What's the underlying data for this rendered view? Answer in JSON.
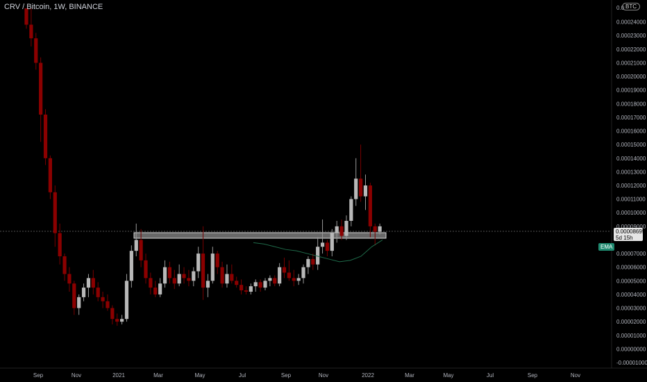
{
  "title": "CRV / Bitcoin, 1W, BINANCE",
  "currency_badge": "BTC",
  "price_label": "0.00008695",
  "countdown_label": "5d 15h",
  "ema_label": "EMA",
  "top_tick_partial": "0.0",
  "colors": {
    "background": "#000000",
    "up_candle": "#b8b8b8",
    "down_candle": "#8b0000",
    "ema": "#1f6b4a",
    "zone_fill": "#bdbdbd",
    "crosshair": "#555555"
  },
  "chart_data": {
    "type": "candlestick",
    "title": "CRV / Bitcoin, 1W, BINANCE",
    "y_ticks": [
      "0.00024000",
      "0.00023000",
      "0.00022000",
      "0.00021000",
      "0.00020000",
      "0.00019000",
      "0.00018000",
      "0.00017000",
      "0.00016000",
      "0.00015000",
      "0.00014000",
      "0.00013000",
      "0.00012000",
      "0.00011000",
      "0.00010000",
      "0.00009000",
      "0.00007000",
      "0.00006000",
      "0.00005000",
      "0.00004000",
      "0.00003000",
      "0.00002000",
      "0.00001000",
      "0.00000000",
      "-0.00001000"
    ],
    "x_ticks": [
      "Sep",
      "Nov",
      "2021",
      "Mar",
      "May",
      "Jul",
      "Sep",
      "Nov",
      "2022",
      "Mar",
      "May",
      "Jul",
      "Sep",
      "Nov"
    ],
    "ylim": [
      -1e-05,
      0.00025
    ],
    "resistance_zone": [
      8.75e-05,
      9.15e-05
    ],
    "candles": [
      [
        0.00025,
        0.00025,
        0.000235,
        0.000238
      ],
      [
        0.000238,
        0.00025,
        0.000222,
        0.000228
      ],
      [
        0.000228,
        0.000232,
        0.000205,
        0.00021
      ],
      [
        0.00021,
        0.000214,
        0.000152,
        0.000172
      ],
      [
        0.000172,
        0.000176,
        0.000135,
        0.00014
      ],
      [
        0.00014,
        0.000142,
        0.00011,
        0.000115
      ],
      [
        0.000115,
        0.00012,
        7.5e-05,
        8.5e-05
      ],
      [
        8.5e-05,
        9.2e-05,
        6.2e-05,
        6.8e-05
      ],
      [
        6.8e-05,
        7e-05,
        5e-05,
        5.5e-05
      ],
      [
        5.5e-05,
        6e-05,
        4.2e-05,
        4.8e-05
      ],
      [
        4.8e-05,
        5e-05,
        2.5e-05,
        3e-05
      ],
      [
        3e-05,
        4e-05,
        2.5e-05,
        3.8e-05
      ],
      [
        3.8e-05,
        4.8e-05,
        3.5e-05,
        4.5e-05
      ],
      [
        4.5e-05,
        5.5e-05,
        3.8e-05,
        5.2e-05
      ],
      [
        5.2e-05,
        5.8e-05,
        4e-05,
        4.5e-05
      ],
      [
        4.5e-05,
        4.9e-05,
        3.5e-05,
        3.8e-05
      ],
      [
        3.8e-05,
        4.2e-05,
        3e-05,
        3.5e-05
      ],
      [
        3.5e-05,
        4e-05,
        2.8e-05,
        3e-05
      ],
      [
        3e-05,
        3.2e-05,
        1.8e-05,
        2.2e-05
      ],
      [
        2.2e-05,
        2.6e-05,
        1.7e-05,
        2e-05
      ],
      [
        2e-05,
        2.5e-05,
        1.8e-05,
        2.2e-05
      ],
      [
        2.2e-05,
        5.5e-05,
        2e-05,
        5e-05
      ],
      [
        5e-05,
        7.6e-05,
        4.5e-05,
        7.2e-05
      ],
      [
        7.2e-05,
        9.2e-05,
        6.8e-05,
        8e-05
      ],
      [
        8e-05,
        8.8e-05,
        6e-05,
        6.5e-05
      ],
      [
        6.5e-05,
        7e-05,
        4.8e-05,
        5.2e-05
      ],
      [
        5.2e-05,
        5.6e-05,
        4e-05,
        4.5e-05
      ],
      [
        4.5e-05,
        5e-05,
        3.8e-05,
        4e-05
      ],
      [
        4e-05,
        5.2e-05,
        3.8e-05,
        4.8e-05
      ],
      [
        4.8e-05,
        6.5e-05,
        4.5e-05,
        6e-05
      ],
      [
        6e-05,
        6.4e-05,
        4.8e-05,
        5.2e-05
      ],
      [
        5.2e-05,
        5.8e-05,
        4.4e-05,
        4.8e-05
      ],
      [
        4.8e-05,
        6.2e-05,
        4.6e-05,
        5.5e-05
      ],
      [
        5.5e-05,
        6e-05,
        4.8e-05,
        5.2e-05
      ],
      [
        5.2e-05,
        5.8e-05,
        4.6e-05,
        5e-05
      ],
      [
        5e-05,
        6e-05,
        4.6e-05,
        5.7e-05
      ],
      [
        5.7e-05,
        7.5e-05,
        5.2e-05,
        7e-05
      ],
      [
        7e-05,
        9e-05,
        3.6e-05,
        4.5e-05
      ],
      [
        4.5e-05,
        5.5e-05,
        3.8e-05,
        5e-05
      ],
      [
        5e-05,
        7.5e-05,
        4.8e-05,
        7e-05
      ],
      [
        7e-05,
        7.2e-05,
        5.5e-05,
        6e-05
      ],
      [
        6e-05,
        6.4e-05,
        4.5e-05,
        4.8e-05
      ],
      [
        4.8e-05,
        6.2e-05,
        4.5e-05,
        5.5e-05
      ],
      [
        5.5e-05,
        6.2e-05,
        4.8e-05,
        5e-05
      ],
      [
        5e-05,
        5.3e-05,
        4.5e-05,
        4.7e-05
      ],
      [
        4.7e-05,
        5.1e-05,
        4e-05,
        4.3e-05
      ],
      [
        4.3e-05,
        4.6e-05,
        4e-05,
        4.2e-05
      ],
      [
        4.2e-05,
        4.8e-05,
        4e-05,
        4.6e-05
      ],
      [
        4.6e-05,
        5.1e-05,
        4.2e-05,
        4.9e-05
      ],
      [
        4.9e-05,
        5.1e-05,
        4.2e-05,
        4.5e-05
      ],
      [
        4.5e-05,
        5.2e-05,
        4.3e-05,
        5e-05
      ],
      [
        5e-05,
        5.4e-05,
        4.6e-05,
        5.2e-05
      ],
      [
        5.2e-05,
        5.4e-05,
        4.6e-05,
        4.8e-05
      ],
      [
        4.8e-05,
        6.3e-05,
        4.6e-05,
        6e-05
      ],
      [
        6e-05,
        6.7e-05,
        5.2e-05,
        5.6e-05
      ],
      [
        5.6e-05,
        6.5e-05,
        5e-05,
        5.2e-05
      ],
      [
        5.2e-05,
        5.8e-05,
        4.6e-05,
        5e-05
      ],
      [
        5e-05,
        5.5e-05,
        4.7e-05,
        5.2e-05
      ],
      [
        5.2e-05,
        6.2e-05,
        4.8e-05,
        6e-05
      ],
      [
        6e-05,
        6.8e-05,
        5.5e-05,
        6.6e-05
      ],
      [
        6.6e-05,
        7e-05,
        5.8e-05,
        6.2e-05
      ],
      [
        6.2e-05,
        8.2e-05,
        5.8e-05,
        7.5e-05
      ],
      [
        7.5e-05,
        9.5e-05,
        7e-05,
        7.8e-05
      ],
      [
        7.8e-05,
        8e-05,
        6.8e-05,
        7.2e-05
      ],
      [
        7.2e-05,
        8.8e-05,
        6.8e-05,
        8.5e-05
      ],
      [
        8.5e-05,
        9.4e-05,
        7.8e-05,
        9e-05
      ],
      [
        9e-05,
        9.5e-05,
        8e-05,
        8.3e-05
      ],
      [
        8.3e-05,
        9.8e-05,
        8e-05,
        9.4e-05
      ],
      [
        9.4e-05,
        0.000112,
        9e-05,
        0.00011
      ],
      [
        0.00011,
        0.00014,
        0.000105,
        0.000125
      ],
      [
        0.000125,
        0.00015,
        0.000108,
        0.000112
      ],
      [
        0.000112,
        0.000128,
        0.000102,
        0.00012
      ],
      [
        0.00012,
        0.000122,
        8.2e-05,
        9e-05
      ],
      [
        9e-05,
        9.2e-05,
        7.6e-05,
        8.6e-05
      ],
      [
        8.6e-05,
        9.2e-05,
        8.4e-05,
        9e-05
      ]
    ],
    "ema": [
      7.8e-05,
      7.7e-05,
      7.5e-05,
      7.3e-05,
      7.2e-05,
      7e-05,
      6.8e-05,
      6.6e-05,
      6.4e-05,
      6.5e-05,
      6.8e-05,
      7.5e-05,
      8e-05
    ]
  }
}
